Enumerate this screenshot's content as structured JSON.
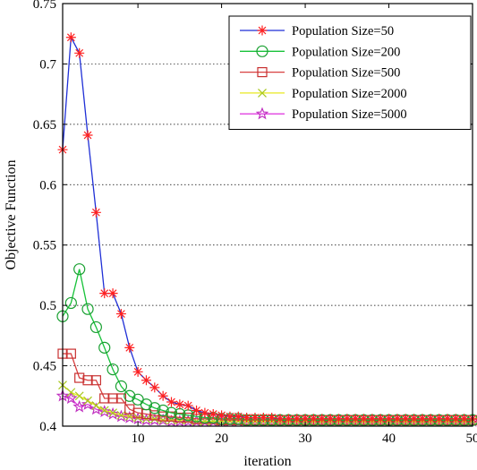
{
  "chart_data": {
    "type": "line",
    "title": "",
    "xlabel": "iteration",
    "ylabel": "Objective Function",
    "xlim": [
      1,
      50
    ],
    "ylim": [
      0.4,
      0.75
    ],
    "xticks": [
      10,
      20,
      30,
      40,
      50
    ],
    "xtick_labels": [
      "10",
      "20",
      "30",
      "40",
      "50"
    ],
    "yticks": [
      0.4,
      0.45,
      0.5,
      0.55,
      0.6,
      0.65,
      0.7,
      0.75
    ],
    "ytick_labels": [
      "0.4",
      "0.45",
      "0.5",
      "0.55",
      "0.6",
      "0.65",
      "0.7",
      "0.75"
    ],
    "grid": "horizontal dotted",
    "legend_position": "top-right",
    "x": [
      1,
      2,
      3,
      4,
      5,
      6,
      7,
      8,
      9,
      10,
      11,
      12,
      13,
      14,
      15,
      16,
      17,
      18,
      19,
      20,
      21,
      22,
      23,
      24,
      25,
      26,
      27,
      28,
      29,
      30,
      31,
      32,
      33,
      34,
      35,
      36,
      37,
      38,
      39,
      40,
      41,
      42,
      43,
      44,
      45,
      46,
      47,
      48,
      49,
      50
    ],
    "series": [
      {
        "name": "Population Size=50",
        "line_color": "#1f2fd6",
        "marker": "asterisk",
        "marker_color": "#ff2020",
        "values": [
          0.629,
          0.722,
          0.709,
          0.641,
          0.577,
          0.51,
          0.51,
          0.493,
          0.465,
          0.445,
          0.438,
          0.432,
          0.425,
          0.42,
          0.418,
          0.417,
          0.413,
          0.411,
          0.41,
          0.409,
          0.408,
          0.408,
          0.407,
          0.407,
          0.407,
          0.407,
          0.406,
          0.406,
          0.406,
          0.406,
          0.406,
          0.406,
          0.406,
          0.406,
          0.406,
          0.406,
          0.406,
          0.406,
          0.406,
          0.406,
          0.406,
          0.406,
          0.406,
          0.406,
          0.406,
          0.406,
          0.406,
          0.406,
          0.406,
          0.406
        ]
      },
      {
        "name": "Population Size=200",
        "line_color": "#18c23a",
        "marker": "circle",
        "marker_color": "#18a030",
        "values": [
          0.491,
          0.502,
          0.53,
          0.497,
          0.482,
          0.465,
          0.447,
          0.433,
          0.425,
          0.422,
          0.418,
          0.415,
          0.413,
          0.411,
          0.41,
          0.409,
          0.408,
          0.407,
          0.407,
          0.406,
          0.406,
          0.406,
          0.405,
          0.405,
          0.405,
          0.405,
          0.405,
          0.405,
          0.405,
          0.405,
          0.405,
          0.405,
          0.405,
          0.405,
          0.405,
          0.405,
          0.405,
          0.405,
          0.405,
          0.405,
          0.405,
          0.405,
          0.405,
          0.405,
          0.405,
          0.405,
          0.405,
          0.405,
          0.405,
          0.405
        ]
      },
      {
        "name": "Population Size=500",
        "line_color": "#d84040",
        "marker": "square",
        "marker_color": "#c83030",
        "values": [
          0.46,
          0.46,
          0.44,
          0.438,
          0.438,
          0.423,
          0.423,
          0.423,
          0.414,
          0.411,
          0.41,
          0.409,
          0.408,
          0.408,
          0.407,
          0.407,
          0.406,
          0.406,
          0.406,
          0.405,
          0.405,
          0.405,
          0.405,
          0.405,
          0.405,
          0.405,
          0.405,
          0.405,
          0.405,
          0.405,
          0.405,
          0.405,
          0.405,
          0.405,
          0.405,
          0.405,
          0.405,
          0.405,
          0.405,
          0.405,
          0.405,
          0.405,
          0.405,
          0.405,
          0.405,
          0.405,
          0.405,
          0.405,
          0.405,
          0.405
        ]
      },
      {
        "name": "Population Size=2000",
        "line_color": "#e8e820",
        "marker": "x",
        "marker_color": "#a8c820",
        "values": [
          0.434,
          0.428,
          0.425,
          0.421,
          0.417,
          0.413,
          0.411,
          0.409,
          0.408,
          0.407,
          0.406,
          0.406,
          0.405,
          0.405,
          0.405,
          0.405,
          0.404,
          0.404,
          0.404,
          0.404,
          0.404,
          0.404,
          0.404,
          0.404,
          0.404,
          0.404,
          0.404,
          0.404,
          0.404,
          0.404,
          0.404,
          0.404,
          0.404,
          0.404,
          0.404,
          0.404,
          0.404,
          0.404,
          0.404,
          0.404,
          0.404,
          0.404,
          0.404,
          0.404,
          0.404,
          0.404,
          0.404,
          0.404,
          0.404,
          0.404
        ]
      },
      {
        "name": "Population Size=5000",
        "line_color": "#e040e0",
        "marker": "star",
        "marker_color": "#c030c0",
        "values": [
          0.425,
          0.423,
          0.416,
          0.418,
          0.414,
          0.412,
          0.41,
          0.408,
          0.407,
          0.406,
          0.405,
          0.405,
          0.405,
          0.404,
          0.404,
          0.404,
          0.404,
          0.404,
          0.404,
          0.404,
          0.404,
          0.404,
          0.404,
          0.404,
          0.404,
          0.404,
          0.404,
          0.404,
          0.404,
          0.404,
          0.404,
          0.404,
          0.404,
          0.404,
          0.404,
          0.404,
          0.404,
          0.404,
          0.404,
          0.404,
          0.404,
          0.404,
          0.404,
          0.404,
          0.404,
          0.404,
          0.404,
          0.404,
          0.404,
          0.404
        ]
      }
    ]
  }
}
